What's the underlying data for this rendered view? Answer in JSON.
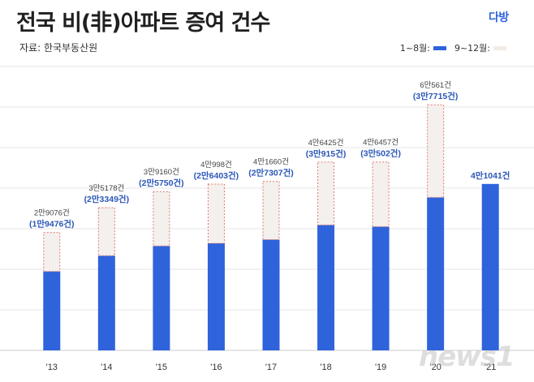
{
  "header": {
    "title": "전국 비(非)아파트 증여 건수",
    "logo": "다방",
    "source": "자료: 한국부동산원"
  },
  "legend": {
    "base_label": "1~8월:",
    "rest_label": "9~12월:"
  },
  "watermark": "news1",
  "colors": {
    "base": "#2e63dc",
    "rest_fill": "#f3f0ee",
    "rest_border": "#e07a6a",
    "annual_label": "#444444",
    "partial_label": "#2b57b8",
    "grid": "#e6e6e6"
  },
  "chart_data": {
    "type": "bar",
    "stacked": true,
    "categories": [
      "'13",
      "'14",
      "'15",
      "'16",
      "'17",
      "'18",
      "'19",
      "'20",
      "'21"
    ],
    "ylim": [
      0,
      70000
    ],
    "grid": true,
    "series": [
      {
        "name": "1~8월",
        "values": [
          19476,
          23349,
          25750,
          26403,
          27307,
          30915,
          30502,
          37715,
          41041
        ]
      },
      {
        "name": "9~12월",
        "values": [
          9600,
          11829,
          13410,
          14595,
          14353,
          15510,
          15955,
          22846,
          0
        ]
      }
    ],
    "annual_labels": [
      "2만9076건",
      "3만5178건",
      "3만9160건",
      "4만998건",
      "4만1660건",
      "4만6425건",
      "4만6457건",
      "6만561건",
      ""
    ],
    "partial_labels": [
      "(1만9476건)",
      "(2만3349건)",
      "(2만5750건)",
      "(2만6403건)",
      "(2만7307건)",
      "(3만915건)",
      "(3만502건)",
      "(3만7715건)",
      "4만1041건"
    ]
  }
}
